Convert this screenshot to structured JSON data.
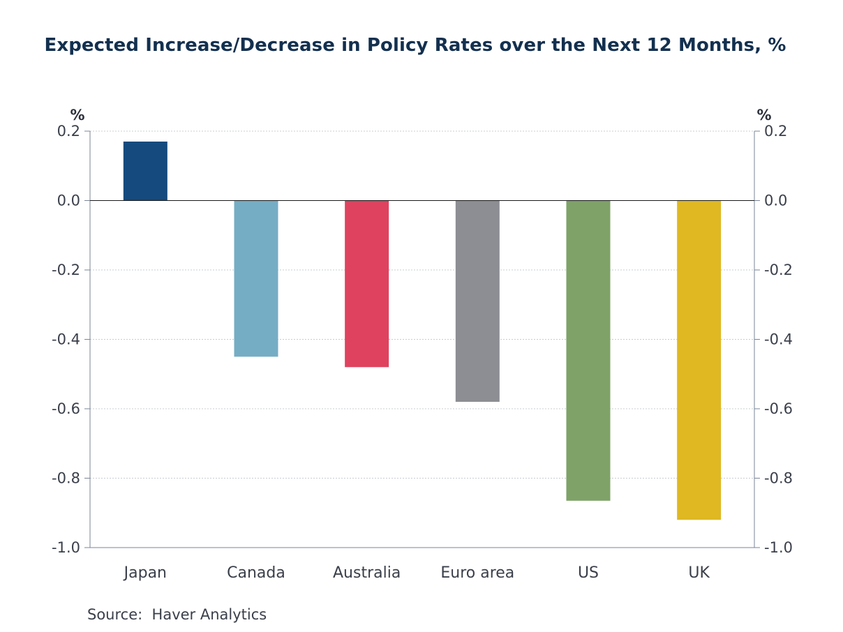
{
  "chart_data": {
    "type": "bar",
    "title": "Expected Increase/Decrease in Policy Rates over the Next 12 Months, %",
    "categories": [
      "Japan",
      "Canada",
      "Australia",
      "Euro area",
      "US",
      "UK"
    ],
    "values": [
      0.17,
      -0.45,
      -0.48,
      -0.58,
      -0.865,
      -0.92
    ],
    "colors": [
      "#144a7e",
      "#75adc4",
      "#df425e",
      "#8d8d94",
      "#7ea267",
      "#dfb822"
    ],
    "ylim": [
      -1.0,
      0.2
    ],
    "yticks": [
      0.2,
      0.0,
      -0.2,
      -0.4,
      -0.6,
      -0.8,
      -1.0
    ],
    "ytick_labels": [
      "0.2",
      "0.0",
      "-0.2",
      "-0.4",
      "-0.6",
      "-0.8",
      "-1.0"
    ],
    "ylabel_left": "%",
    "ylabel_right": "%",
    "xlabel": "",
    "grid": true,
    "source": "Source:  Haver Analytics"
  }
}
